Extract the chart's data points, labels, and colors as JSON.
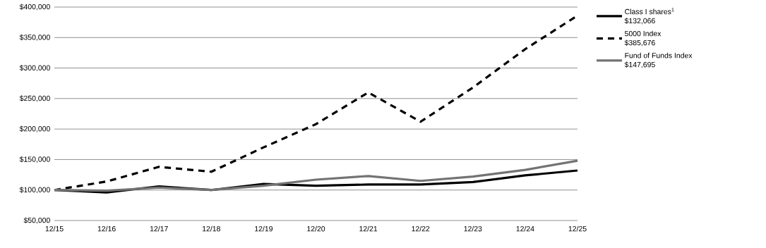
{
  "chart_data": {
    "type": "line",
    "categories": [
      "12/15",
      "12/16",
      "12/17",
      "12/18",
      "12/19",
      "12/20",
      "12/21",
      "12/22",
      "12/23",
      "12/24",
      "12/25"
    ],
    "series": [
      {
        "name": "Class I shares$^{1}$",
        "color": "#000000",
        "line_style": "solid",
        "values": [
          100000,
          96000,
          106000,
          100000,
          110000,
          107000,
          109000,
          109000,
          113000,
          124000,
          132000
        ]
      },
      {
        "name": "5000 Index",
        "color": "#000000",
        "line_style": "dashed",
        "values": [
          100000,
          114000,
          138000,
          130000,
          170000,
          208000,
          260000,
          212000,
          268000,
          331000,
          386000
        ]
      },
      {
        "name": "Fund of Funds Index",
        "color": "#737373",
        "line_style": "solid",
        "values": [
          100000,
          99000,
          104000,
          100000,
          107000,
          117000,
          123000,
          115000,
          122000,
          133000,
          148000
        ]
      }
    ],
    "annotations": [
      "$132,066",
      "$385,676",
      "$147,695"
    ],
    "ylim": [
      50000,
      400000
    ],
    "yticks": [
      {
        "value": 50000,
        "label": "$50,000"
      },
      {
        "value": 100000,
        "label": "$100,000"
      },
      {
        "value": 150000,
        "label": "$150,000"
      },
      {
        "value": 200000,
        "label": "$200,000"
      },
      {
        "value": 250000,
        "label": "$250,000"
      },
      {
        "value": 300000,
        "label": "$300,000"
      },
      {
        "value": 350000,
        "label": "$350,000"
      },
      {
        "value": 400000,
        "label": "$400,000"
      }
    ],
    "grid": "y",
    "legend": "right",
    "marker": "none"
  }
}
